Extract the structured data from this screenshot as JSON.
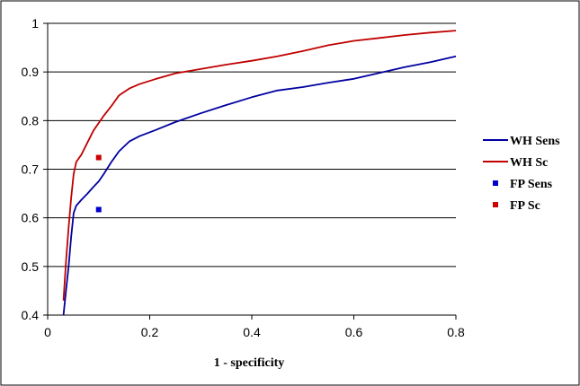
{
  "chart_data": {
    "type": "line",
    "title": "",
    "xlabel": "1 - specificity",
    "ylabel": "",
    "xlim": [
      0,
      0.8
    ],
    "ylim": [
      0.4,
      1.0
    ],
    "x_ticks": [
      0,
      0.2,
      0.4,
      0.6,
      0.8
    ],
    "y_ticks": [
      0.4,
      0.5,
      0.6,
      0.7,
      0.8,
      0.9,
      1.0
    ],
    "x_tick_labels": [
      "0",
      "0.2",
      "0.4",
      "0.6",
      "0.8"
    ],
    "y_tick_labels": [
      "0.4",
      "0.5",
      "0.6",
      "0.7",
      "0.8",
      "0.9",
      "1"
    ],
    "grid": "horizontal",
    "legend_position": "right",
    "series": [
      {
        "name": "WH Sens",
        "type": "line",
        "color": "#0000a0",
        "x": [
          0.031,
          0.036,
          0.041,
          0.046,
          0.051,
          0.056,
          0.066,
          0.078,
          0.09,
          0.1,
          0.11,
          0.125,
          0.14,
          0.16,
          0.18,
          0.21,
          0.25,
          0.3,
          0.35,
          0.4,
          0.45,
          0.5,
          0.55,
          0.6,
          0.65,
          0.7,
          0.75,
          0.8
        ],
        "y": [
          0.4,
          0.45,
          0.5,
          0.56,
          0.61,
          0.625,
          0.637,
          0.65,
          0.664,
          0.675,
          0.69,
          0.715,
          0.737,
          0.757,
          0.768,
          0.78,
          0.797,
          0.815,
          0.832,
          0.848,
          0.862,
          0.869,
          0.878,
          0.886,
          0.898,
          0.91,
          0.92,
          0.932
        ]
      },
      {
        "name": "WH Sc",
        "type": "line",
        "color": "#c00000",
        "x": [
          0.031,
          0.036,
          0.041,
          0.046,
          0.051,
          0.056,
          0.066,
          0.078,
          0.09,
          0.1,
          0.11,
          0.125,
          0.14,
          0.16,
          0.18,
          0.21,
          0.25,
          0.3,
          0.35,
          0.4,
          0.45,
          0.5,
          0.55,
          0.6,
          0.65,
          0.7,
          0.75,
          0.8
        ],
        "y": [
          0.43,
          0.51,
          0.58,
          0.64,
          0.69,
          0.715,
          0.73,
          0.755,
          0.78,
          0.795,
          0.81,
          0.83,
          0.852,
          0.866,
          0.875,
          0.885,
          0.897,
          0.906,
          0.915,
          0.923,
          0.932,
          0.943,
          0.955,
          0.964,
          0.97,
          0.976,
          0.981,
          0.985
        ]
      },
      {
        "name": "FP Sens",
        "type": "scatter",
        "color": "#0000cc",
        "x": [
          0.1
        ],
        "y": [
          0.617
        ]
      },
      {
        "name": "FP Sc",
        "type": "scatter",
        "color": "#cc0000",
        "x": [
          0.1
        ],
        "y": [
          0.724
        ]
      }
    ]
  }
}
